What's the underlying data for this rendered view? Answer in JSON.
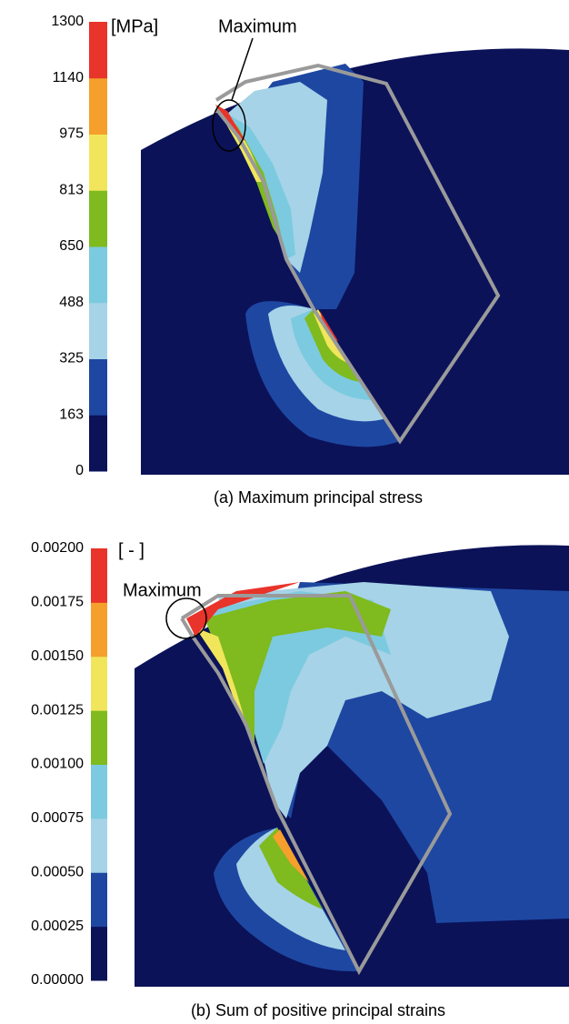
{
  "panels": [
    {
      "colorbar": {
        "unit": "[MPa]",
        "ticks": [
          "1300",
          "1140",
          "975",
          "813",
          "650",
          "488",
          "325",
          "163",
          "0"
        ],
        "colors": [
          "#0b1258",
          "#1e47a1",
          "#a6d3e7",
          "#7ccadf",
          "#7fba1e",
          "#f1e65b",
          "#f5a02c",
          "#e8342a"
        ]
      },
      "annotation": "Maximum",
      "caption": "(a) Maximum principal stress"
    },
    {
      "colorbar": {
        "unit": "[ - ]",
        "ticks": [
          "0.00200",
          "0.00175",
          "0.00150",
          "0.00125",
          "0.00100",
          "0.00075",
          "0.00050",
          "0.00025",
          "0.00000"
        ],
        "colors": [
          "#0b1258",
          "#1e47a1",
          "#a6d3e7",
          "#7ccadf",
          "#7fba1e",
          "#f1e65b",
          "#f5a02c",
          "#e8342a"
        ]
      },
      "annotation": "Maximum",
      "caption": "(b) Sum of positive principal strains"
    }
  ]
}
